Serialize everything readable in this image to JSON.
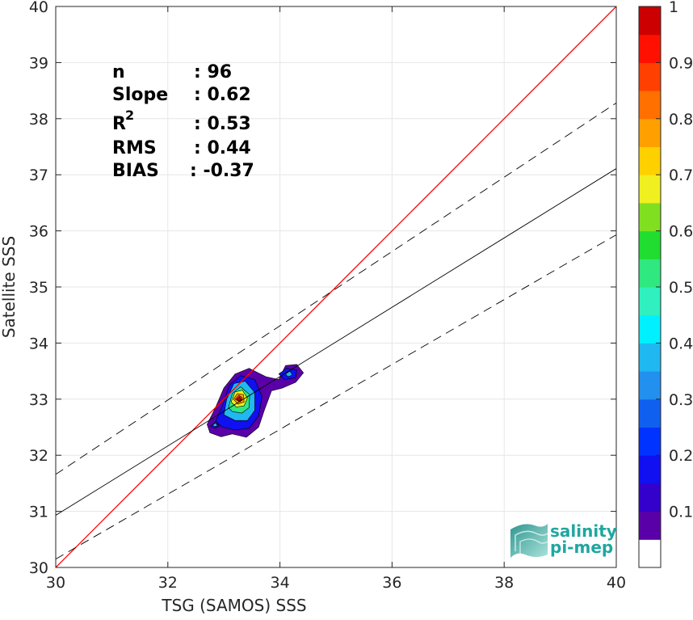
{
  "chart_data": {
    "type": "contour",
    "xlabel": "TSG (SAMOS) SSS",
    "ylabel": "Satellite SSS",
    "xlim": [
      30,
      40
    ],
    "ylim": [
      30,
      40
    ],
    "x_ticks": [
      "30",
      "32",
      "34",
      "36",
      "38",
      "40"
    ],
    "y_ticks": [
      "30",
      "31",
      "32",
      "33",
      "34",
      "35",
      "36",
      "37",
      "38",
      "39",
      "40"
    ],
    "grid": true,
    "stats": [
      {
        "label": "n",
        "value": ": 96"
      },
      {
        "label": "Slope",
        "value": ": 0.62"
      },
      {
        "label": "R",
        "sup": "2",
        "value": ": 0.53"
      },
      {
        "label": "RMS",
        "value": ": 0.44"
      },
      {
        "label": "BIAS",
        "value": ": -0.37"
      }
    ],
    "lines": {
      "identity": {
        "color": "#ff0000",
        "points": [
          [
            30,
            30
          ],
          [
            40,
            40
          ]
        ]
      },
      "fit": {
        "color": "#000000",
        "style": "solid",
        "points": [
          [
            30,
            30.93
          ],
          [
            40,
            37.11
          ]
        ]
      },
      "upper_bound": {
        "color": "#000000",
        "style": "dashed",
        "points": [
          [
            30,
            31.66
          ],
          [
            40,
            38.28
          ]
        ]
      },
      "lower_bound": {
        "color": "#000000",
        "style": "dashed",
        "points": [
          [
            30,
            30.15
          ],
          [
            40,
            35.93
          ]
        ]
      }
    },
    "density_peak": {
      "x": 33.28,
      "y": 33.0
    },
    "colorbar": {
      "ticks": [
        "0.1",
        "0.2",
        "0.3",
        "0.4",
        "0.5",
        "0.6",
        "0.7",
        "0.8",
        "0.9",
        "1"
      ],
      "levels": [
        0,
        0.05,
        0.1,
        0.15,
        0.2,
        0.25,
        0.3,
        0.35,
        0.4,
        0.45,
        0.5,
        0.55,
        0.6,
        0.65,
        0.7,
        0.75,
        0.8,
        0.85,
        0.9,
        0.95,
        1.0
      ],
      "colors": [
        "#ffffff",
        "#5a00a8",
        "#3300cc",
        "#1010f0",
        "#0033ff",
        "#1060f0",
        "#2290ee",
        "#20b8f0",
        "#00f0ff",
        "#30f0c0",
        "#30e880",
        "#20dd30",
        "#80e020",
        "#f0f020",
        "#ffd000",
        "#ffa000",
        "#ff7000",
        "#ff4000",
        "#ff1000",
        "#cc0000"
      ]
    },
    "contours": [
      {
        "level": 0.05,
        "color": "#5a00a8",
        "poly": [
          [
            32.7,
            32.55
          ],
          [
            32.85,
            32.85
          ],
          [
            33.0,
            33.2
          ],
          [
            33.2,
            33.45
          ],
          [
            33.45,
            33.55
          ],
          [
            33.75,
            33.4
          ],
          [
            33.98,
            33.35
          ],
          [
            34.1,
            33.6
          ],
          [
            34.3,
            33.62
          ],
          [
            34.42,
            33.47
          ],
          [
            34.28,
            33.3
          ],
          [
            34.05,
            33.2
          ],
          [
            33.85,
            33.15
          ],
          [
            33.72,
            32.8
          ],
          [
            33.62,
            32.5
          ],
          [
            33.4,
            32.32
          ],
          [
            33.15,
            32.38
          ],
          [
            32.95,
            32.33
          ],
          [
            32.75,
            32.4
          ]
        ]
      },
      {
        "level": 0.15,
        "color": "#1010f0",
        "poly": [
          [
            32.85,
            32.6
          ],
          [
            32.98,
            32.9
          ],
          [
            33.1,
            33.25
          ],
          [
            33.3,
            33.42
          ],
          [
            33.55,
            33.35
          ],
          [
            33.68,
            33.05
          ],
          [
            33.62,
            32.7
          ],
          [
            33.45,
            32.48
          ],
          [
            33.2,
            32.45
          ],
          [
            32.98,
            32.5
          ]
        ]
      },
      {
        "level": 0.3,
        "color": "#20b8f0",
        "poly": [
          [
            33.0,
            32.72
          ],
          [
            33.05,
            33.0
          ],
          [
            33.18,
            33.28
          ],
          [
            33.38,
            33.32
          ],
          [
            33.55,
            33.12
          ],
          [
            33.55,
            32.8
          ],
          [
            33.42,
            32.62
          ],
          [
            33.2,
            32.62
          ]
        ]
      },
      {
        "level": 0.45,
        "color": "#30e880",
        "poly": [
          [
            33.08,
            32.85
          ],
          [
            33.15,
            33.1
          ],
          [
            33.3,
            33.22
          ],
          [
            33.46,
            33.08
          ],
          [
            33.45,
            32.85
          ],
          [
            33.32,
            32.75
          ],
          [
            33.15,
            32.78
          ]
        ]
      },
      {
        "level": 0.6,
        "color": "#f0f020",
        "poly": [
          [
            33.13,
            32.95
          ],
          [
            33.2,
            33.13
          ],
          [
            33.33,
            33.16
          ],
          [
            33.42,
            33.02
          ],
          [
            33.36,
            32.88
          ],
          [
            33.22,
            32.86
          ]
        ]
      },
      {
        "level": 0.75,
        "color": "#ffa000",
        "poly": [
          [
            33.17,
            33.0
          ],
          [
            33.24,
            33.1
          ],
          [
            33.35,
            33.08
          ],
          [
            33.36,
            32.95
          ],
          [
            33.25,
            32.91
          ]
        ]
      },
      {
        "level": 0.85,
        "color": "#ff4000",
        "poly": [
          [
            33.2,
            33.0
          ],
          [
            33.27,
            33.07
          ],
          [
            33.33,
            33.02
          ],
          [
            33.29,
            32.95
          ]
        ]
      },
      {
        "level": 0.95,
        "color": "#cc0000",
        "poly": [
          [
            33.23,
            33.0
          ],
          [
            33.28,
            33.04
          ],
          [
            33.31,
            32.99
          ],
          [
            33.26,
            32.97
          ]
        ]
      },
      {
        "level": 0.15,
        "color": "#1010f0",
        "poly": [
          [
            33.98,
            33.45
          ],
          [
            34.12,
            33.55
          ],
          [
            34.3,
            33.52
          ],
          [
            34.28,
            33.38
          ],
          [
            34.08,
            33.35
          ]
        ]
      },
      {
        "level": 0.3,
        "color": "#20b8f0",
        "poly": [
          [
            34.1,
            33.45
          ],
          [
            34.18,
            33.5
          ],
          [
            34.22,
            33.43
          ],
          [
            34.14,
            33.4
          ]
        ]
      },
      {
        "level": 0.15,
        "color": "#1010f0",
        "poly": [
          [
            32.76,
            32.52
          ],
          [
            32.86,
            32.6
          ],
          [
            32.92,
            32.52
          ],
          [
            32.84,
            32.48
          ]
        ]
      },
      {
        "level": 0.3,
        "color": "#20b8f0",
        "poly": [
          [
            32.8,
            32.54
          ],
          [
            32.86,
            32.58
          ],
          [
            32.88,
            32.52
          ],
          [
            32.83,
            32.51
          ]
        ]
      }
    ],
    "logo": {
      "line1": "salinity",
      "line2": "pi-mep"
    }
  }
}
